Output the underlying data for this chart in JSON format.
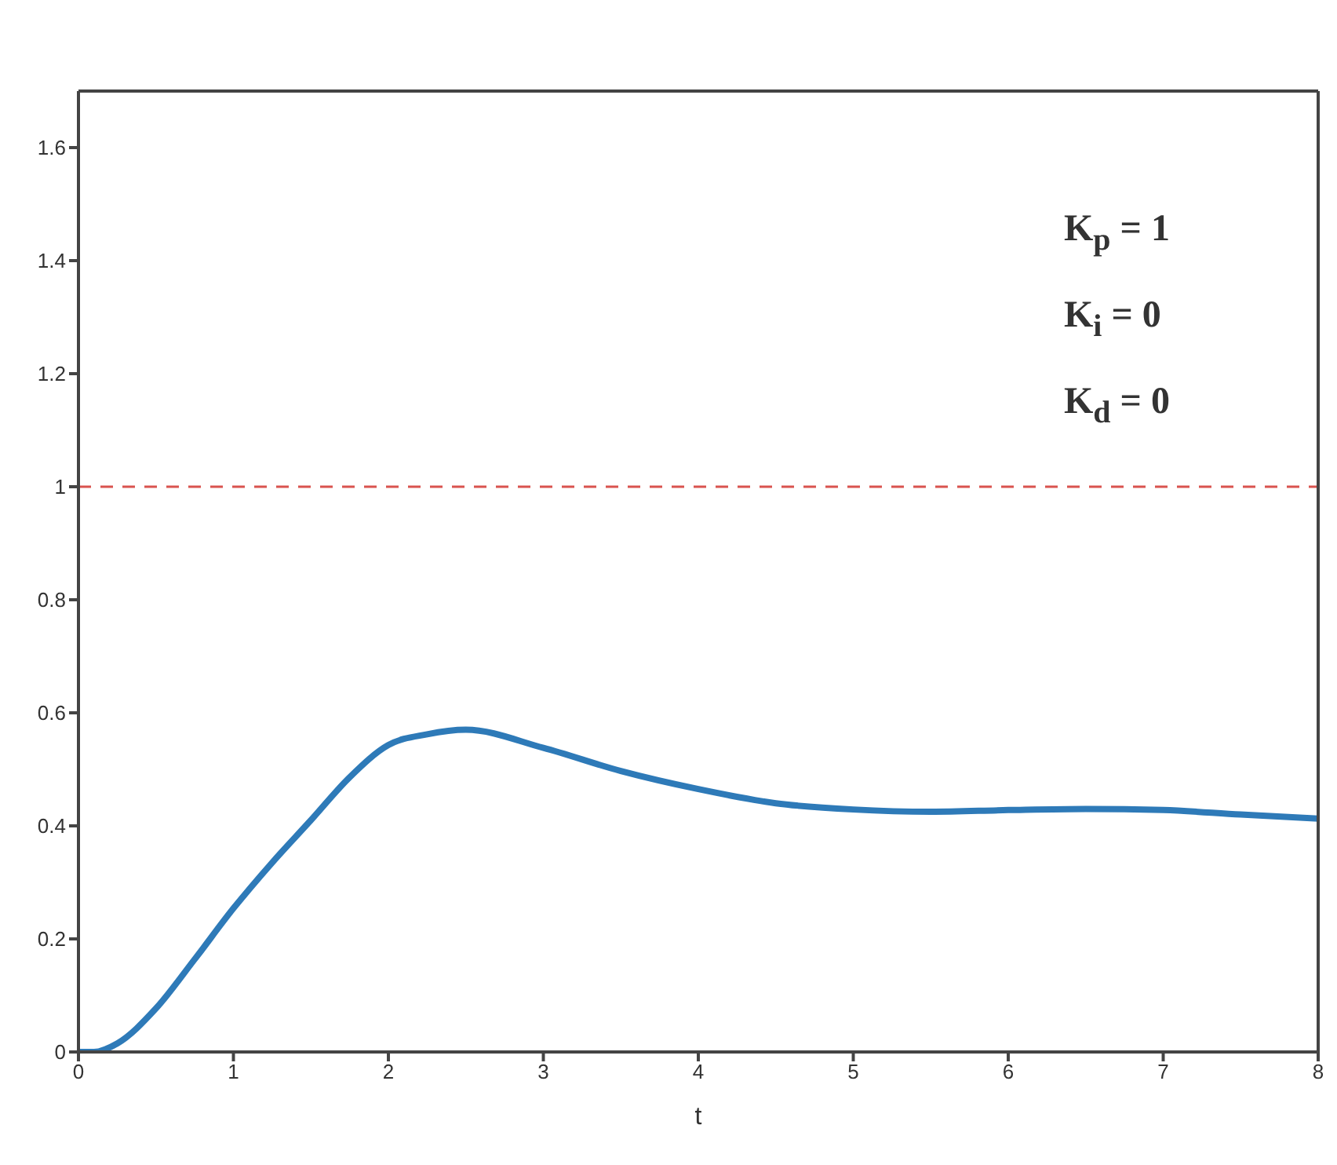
{
  "chart_data": {
    "type": "line",
    "xlabel": "t",
    "xlim": [
      0,
      8
    ],
    "xticks": [
      0,
      1,
      2,
      3,
      4,
      5,
      6,
      7,
      8
    ],
    "ylim": [
      0,
      1.7
    ],
    "yticks": [
      0,
      0.2,
      0.4,
      0.6,
      0.8,
      1,
      1.2,
      1.4,
      1.6
    ],
    "marker": "none",
    "line_style": "solid",
    "x": [
      0,
      0.1,
      0.25,
      0.5,
      0.75,
      1,
      1.25,
      1.5,
      1.75,
      2,
      2.25,
      2.5,
      3,
      3.5,
      4,
      4.5,
      5,
      5.5,
      6,
      6.5,
      7,
      7.5,
      8
    ],
    "series": [
      {
        "color": "#2e7ab8",
        "values": [
          0,
          0,
          0.015,
          0.077,
          0.164,
          0.254,
          0.335,
          0.41,
          0.486,
          0.543,
          0.562,
          0.57,
          0.538,
          0.497,
          0.465,
          0.44,
          0.429,
          0.425,
          0.428,
          0.43,
          0.428,
          0.42,
          0.413
        ]
      }
    ],
    "ref_lines": [
      {
        "axis": "y",
        "value": 1,
        "color": "#d9534f",
        "line_style": "dashed"
      }
    ],
    "annotations": [
      "K$_{p}$ = 1",
      "K$_{i}$ = 0",
      "K$_{d}$ = 0"
    ]
  }
}
